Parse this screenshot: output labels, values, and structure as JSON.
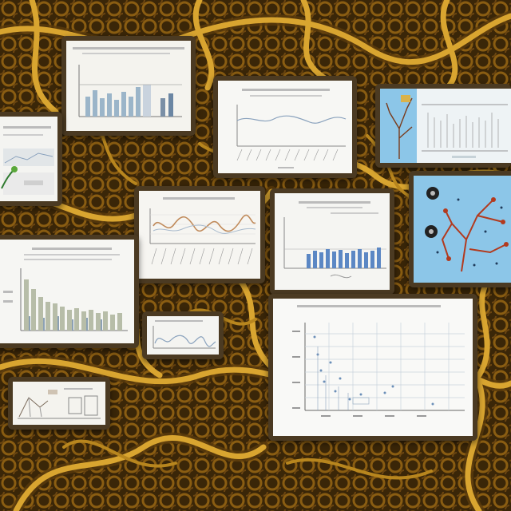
{
  "scene": {
    "description_colors": {
      "root_dark": "#3a2608",
      "root_mid": "#8a5d12",
      "root_light": "#d9a530",
      "paper": "#f4f3ee",
      "panel_frame": "#4b3a22",
      "sky_blue": "#8cc6e8"
    },
    "panels": [
      {
        "kind": "bar-chart"
      },
      {
        "kind": "line-chart"
      },
      {
        "kind": "tree-diagram"
      },
      {
        "kind": "mini-chart"
      },
      {
        "kind": "wave-chart"
      },
      {
        "kind": "bar-chart"
      },
      {
        "kind": "network-diagram"
      },
      {
        "kind": "bar-chart"
      },
      {
        "kind": "wave-chart"
      },
      {
        "kind": "sketch"
      },
      {
        "kind": "grid-chart"
      }
    ]
  }
}
